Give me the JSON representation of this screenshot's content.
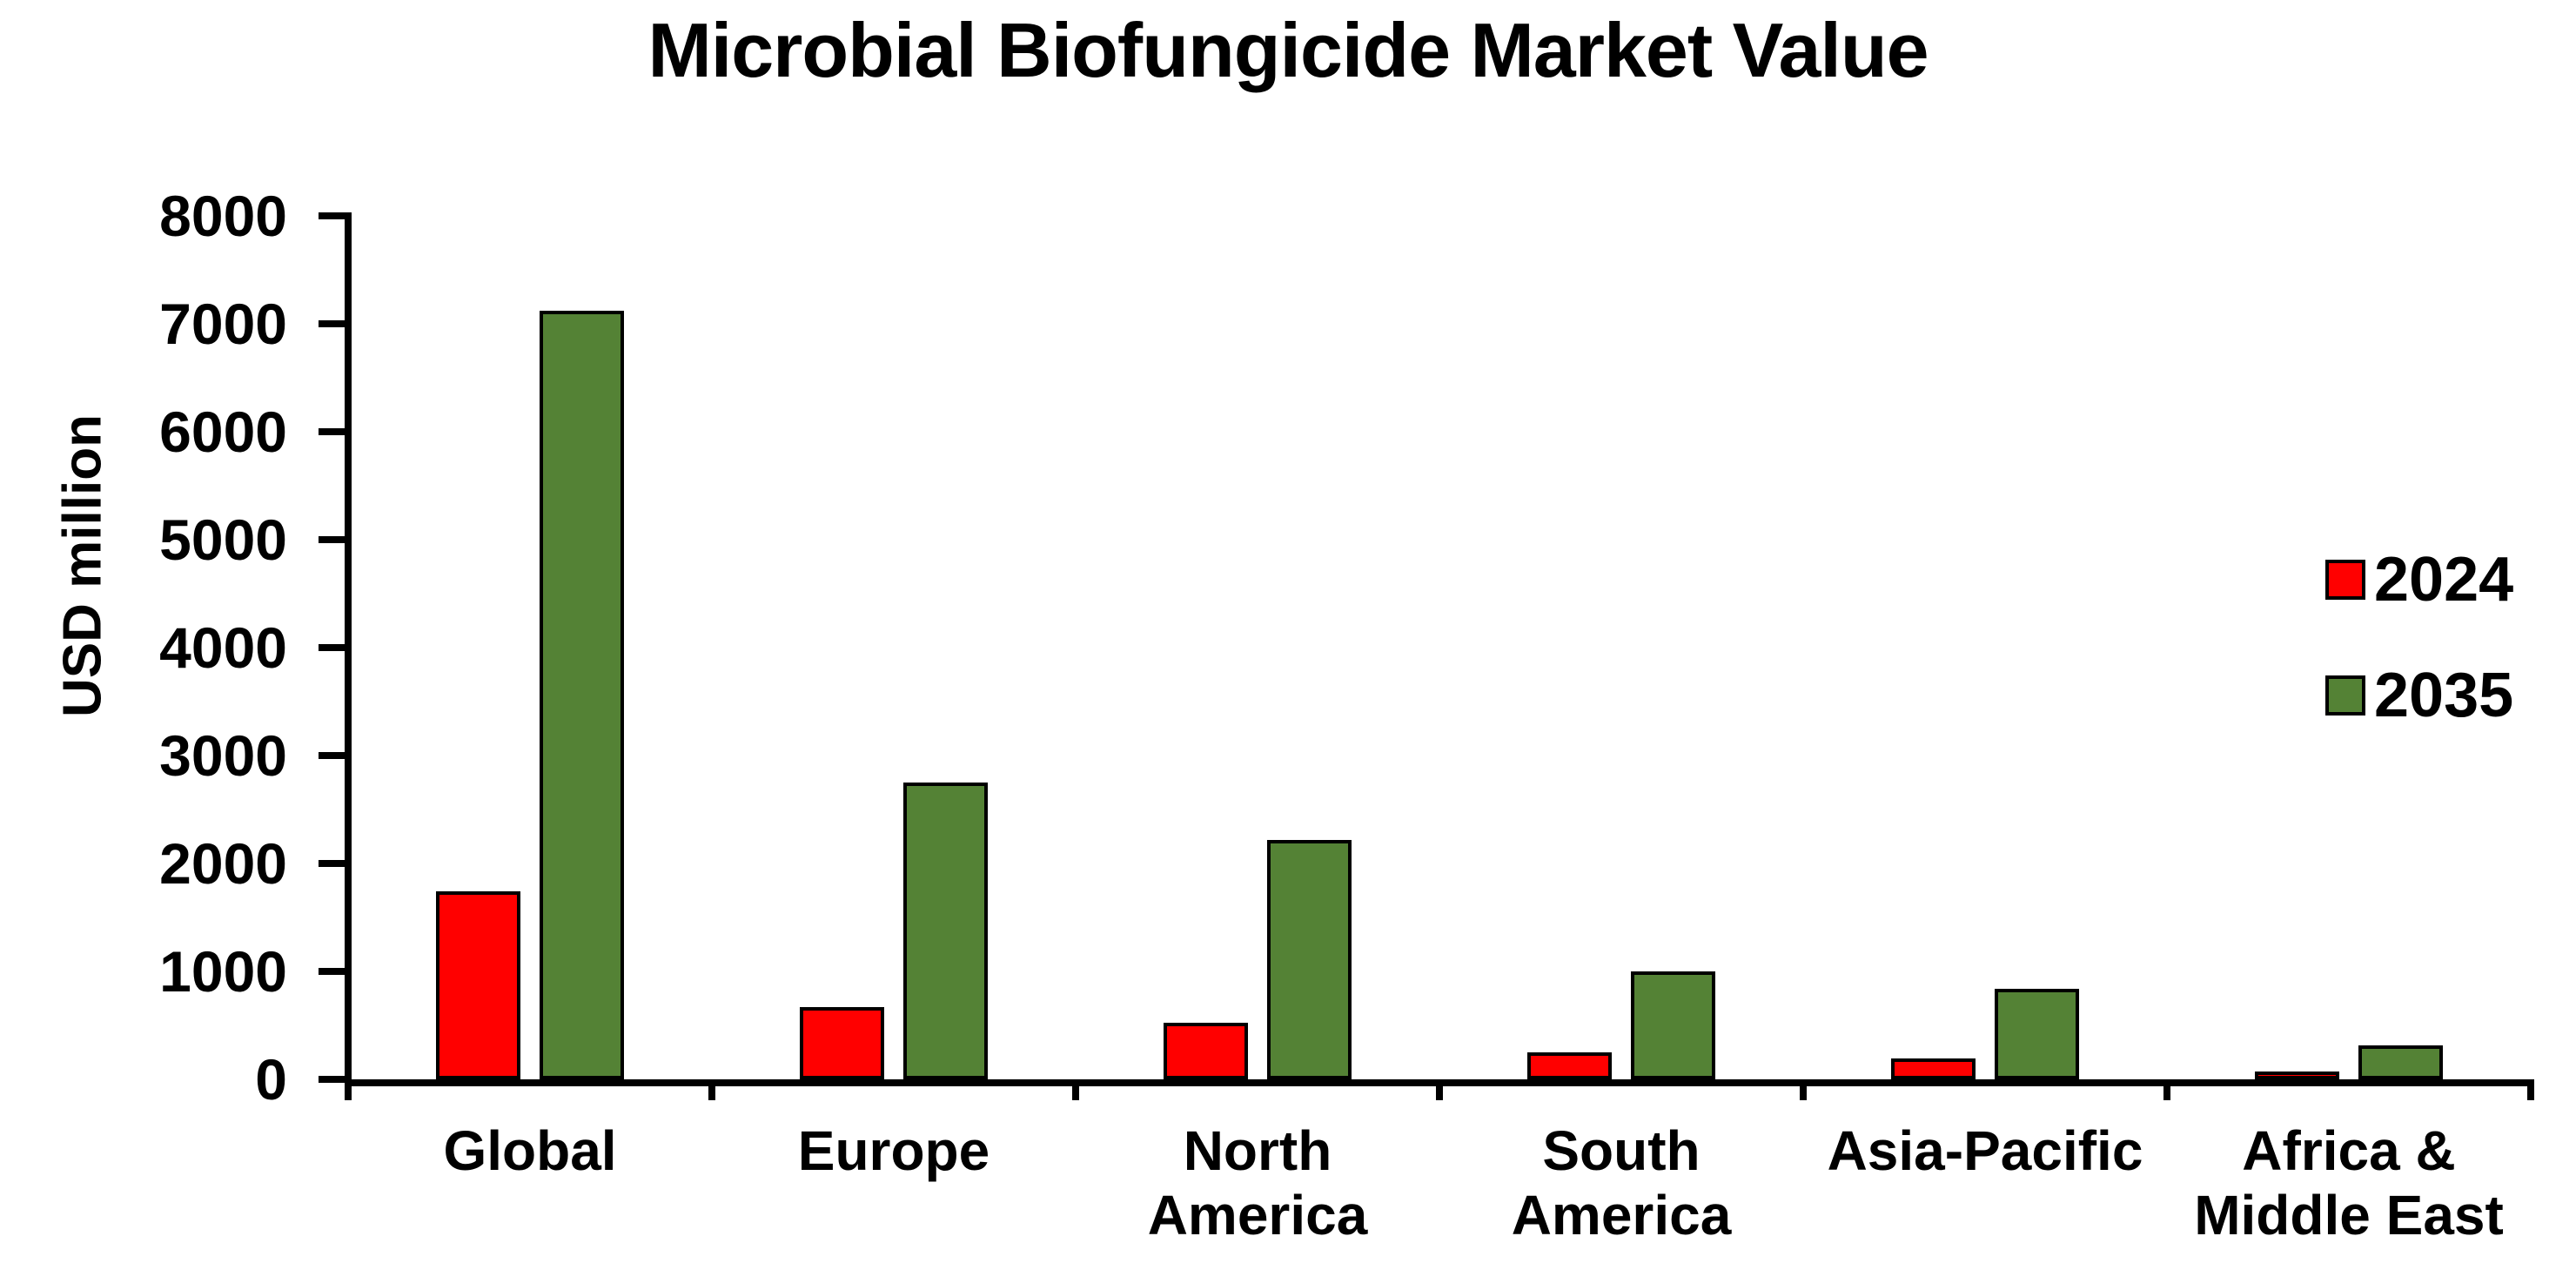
{
  "title": "Microbial Biofungicide Market Value",
  "chart_data": {
    "type": "bar",
    "title": "Microbial Biofungicide Market Value",
    "xlabel": "",
    "ylabel": "USD million",
    "ylim": [
      0,
      8000
    ],
    "yticks": [
      0,
      1000,
      2000,
      3000,
      4000,
      5000,
      6000,
      7000,
      8000
    ],
    "grid": false,
    "legend_position": "right",
    "background": "#FFFFFF",
    "categories": [
      "Global",
      "Europe",
      "North\nAmerica",
      "South\nAmerica",
      "Asia-Pacific",
      "Africa &\nMiddle East"
    ],
    "series": [
      {
        "name": "2024",
        "color": "#FF0000",
        "values": [
          1740,
          670,
          525,
          250,
          195,
          55
        ]
      },
      {
        "name": "2035",
        "color": "#548235",
        "values": [
          7120,
          2750,
          2220,
          1000,
          840,
          315
        ]
      }
    ]
  },
  "legend": {
    "items": [
      {
        "label": "2024",
        "color": "#FF0000"
      },
      {
        "label": "2035",
        "color": "#548235"
      }
    ]
  }
}
